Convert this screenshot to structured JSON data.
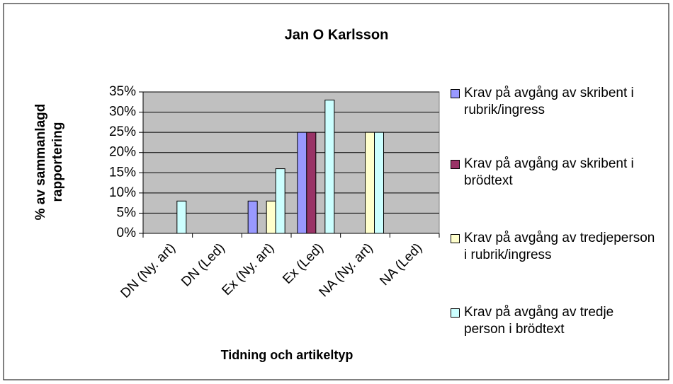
{
  "chart_data": {
    "type": "bar",
    "title": "Jan O Karlsson",
    "x_label": "Tidning och artikeltyp",
    "y_label": "% av sammanlagd rapportering",
    "categories": [
      "DN (Ny. art)",
      "DN (Led)",
      "Ex (Ny. art)",
      "Ex (Led)",
      "NA (Ny. art)",
      "NA (Led)"
    ],
    "series": [
      {
        "name": "Krav på avgång av skribent i rubrik/ingress",
        "color": "#9999ff",
        "values": [
          0,
          0,
          8,
          25,
          0,
          0
        ]
      },
      {
        "name": "Krav på avgång av skribent i brödtext",
        "color": "#993366",
        "values": [
          0,
          0,
          0,
          25,
          0,
          0
        ]
      },
      {
        "name": "Krav på avgång av tredjeperson i rubrik/ingress",
        "color": "#ffffcc",
        "values": [
          0,
          0,
          8,
          0,
          25,
          0
        ]
      },
      {
        "name": "Krav på avgång av tredje person i brödtext",
        "color": "#ccffff",
        "values": [
          8,
          0,
          16,
          33,
          25,
          0
        ]
      }
    ],
    "ylim": [
      0,
      35
    ],
    "yticks": [
      {
        "value": 0,
        "label": "0%"
      },
      {
        "value": 5,
        "label": "5%"
      },
      {
        "value": 10,
        "label": "10%"
      },
      {
        "value": 15,
        "label": "15%"
      },
      {
        "value": 20,
        "label": "20%"
      },
      {
        "value": 25,
        "label": "25%"
      },
      {
        "value": 30,
        "label": "30%"
      },
      {
        "value": 35,
        "label": "35%"
      }
    ],
    "grid": true,
    "plot_background": "#c0c0c0",
    "legend": "right"
  }
}
